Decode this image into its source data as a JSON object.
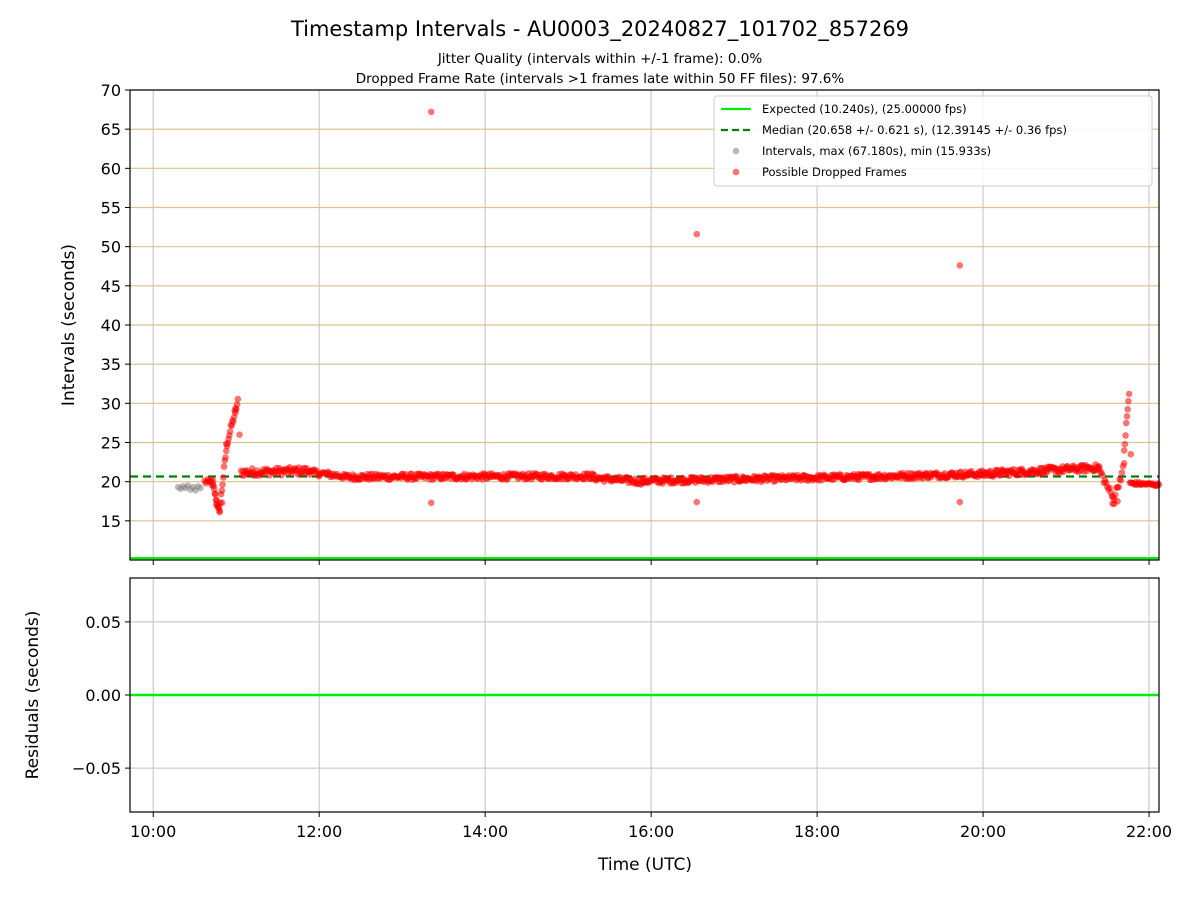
{
  "chart_data": {
    "type": "scatter",
    "title": "Timestamp Intervals - AU0003_20240827_101702_857269",
    "subtitle_lines": [
      "Jitter Quality (intervals within +/-1 frame): 0.0%",
      "Dropped Frame Rate (intervals >1 frames late within 50 FF files): 97.6%"
    ],
    "x_ticks": [
      "10:00",
      "12:00",
      "14:00",
      "16:00",
      "18:00",
      "20:00",
      "22:00"
    ],
    "xlabel": "Time (UTC)",
    "xlim_hours": [
      9.72,
      22.12
    ],
    "top_panel": {
      "ylabel": "Intervals (seconds)",
      "ylim": [
        10.0,
        70.0
      ],
      "y_ticks": [
        15,
        20,
        25,
        30,
        35,
        40,
        45,
        50,
        55,
        60,
        65,
        70
      ],
      "expected_interval": 10.24,
      "median_interval": 20.658,
      "legend": [
        {
          "label": "Expected (10.240s), (25.00000 fps)",
          "kind": "line",
          "color": "#00ee00"
        },
        {
          "label": "Median (20.658 +/- 0.621 s), (12.39145 +/- 0.36 fps)",
          "kind": "dashed",
          "color": "#008000"
        },
        {
          "label": "Intervals, max (67.180s), min (15.933s)",
          "kind": "dot",
          "color": "#808080"
        },
        {
          "label": "Possible Dropped Frames",
          "kind": "dot",
          "color": "#ff0000"
        }
      ],
      "series": [
        {
          "name": "Intervals, max (67.180s), min (15.933s)",
          "color": "#808080",
          "points": [
            [
              10.3,
              19.3
            ],
            [
              10.33,
              19.1
            ],
            [
              10.36,
              19.4
            ],
            [
              10.39,
              19.2
            ],
            [
              10.42,
              19.5
            ],
            [
              10.45,
              19.0
            ],
            [
              10.48,
              19.3
            ],
            [
              10.51,
              18.9
            ],
            [
              10.54,
              19.4
            ],
            [
              10.57,
              19.2
            ]
          ]
        },
        {
          "name": "Possible Dropped Frames",
          "color": "#ff0000",
          "segments": [
            {
              "from": [
                10.62,
                20.0
              ],
              "to": [
                10.72,
                19.8
              ],
              "count": 8,
              "jitter": 0.4
            },
            {
              "from": [
                10.72,
                19.5
              ],
              "to": [
                10.8,
                16.0
              ],
              "count": 12,
              "jitter": 0.4
            },
            {
              "from": [
                10.8,
                16.5
              ],
              "to": [
                10.88,
                24.0
              ],
              "count": 10,
              "jitter": 0.5
            },
            {
              "from": [
                10.88,
                24.5
              ],
              "to": [
                11.02,
                30.2
              ],
              "count": 16,
              "jitter": 0.5
            },
            {
              "from": [
                11.06,
                21.2
              ],
              "to": [
                11.9,
                21.4
              ],
              "count": 70,
              "jitter": 0.5
            },
            {
              "from": [
                11.9,
                21.2
              ],
              "to": [
                12.3,
                20.7
              ],
              "count": 30,
              "jitter": 0.4
            },
            {
              "from": [
                12.3,
                20.6
              ],
              "to": [
                15.3,
                20.7
              ],
              "count": 260,
              "jitter": 0.4
            },
            {
              "from": [
                15.3,
                20.5
              ],
              "to": [
                15.9,
                20.0
              ],
              "count": 50,
              "jitter": 0.4
            },
            {
              "from": [
                15.9,
                20.1
              ],
              "to": [
                18.5,
                20.6
              ],
              "count": 230,
              "jitter": 0.4
            },
            {
              "from": [
                18.5,
                20.6
              ],
              "to": [
                20.0,
                21.0
              ],
              "count": 140,
              "jitter": 0.4
            },
            {
              "from": [
                20.0,
                21.0
              ],
              "to": [
                21.4,
                21.8
              ],
              "count": 130,
              "jitter": 0.45
            },
            {
              "from": [
                21.4,
                21.5
              ],
              "to": [
                21.58,
                17.6
              ],
              "count": 14,
              "jitter": 0.5
            },
            {
              "from": [
                21.58,
                18.0
              ],
              "to": [
                21.7,
                22.0
              ],
              "count": 10,
              "jitter": 0.5
            },
            {
              "from": [
                21.7,
                24.0
              ],
              "to": [
                21.76,
                31.3
              ],
              "count": 8,
              "jitter": 0.5
            },
            {
              "from": [
                21.77,
                19.8
              ],
              "to": [
                22.12,
                19.6
              ],
              "count": 30,
              "jitter": 0.2
            }
          ],
          "points": [
            [
              10.7,
              20.3
            ],
            [
              10.76,
              17.1
            ],
            [
              10.83,
              17.3
            ],
            [
              10.99,
              28.8
            ],
            [
              11.04,
              26.0
            ],
            [
              13.35,
              67.2
            ],
            [
              13.35,
              17.3
            ],
            [
              16.55,
              51.6
            ],
            [
              16.55,
              17.4
            ],
            [
              19.72,
              47.6
            ],
            [
              19.72,
              17.4
            ],
            [
              21.78,
              23.5
            ],
            [
              21.56,
              17.2
            ],
            [
              21.62,
              17.5
            ]
          ]
        }
      ]
    },
    "bottom_panel": {
      "ylabel": "Residuals (seconds)",
      "ylim": [
        -0.08,
        0.08
      ],
      "y_ticks": [
        "0.05",
        "0.00",
        "−0.05"
      ],
      "y_tick_values": [
        0.05,
        0.0,
        -0.05
      ],
      "zero_line_color": "#00ee00"
    },
    "colors": {
      "expected": "#00ee00",
      "median": "#008000",
      "grid_y_top": "#d9c28c",
      "grid": "#cccccc",
      "dropped": "#ff0000",
      "intervals": "#808080"
    },
    "grid": true,
    "legend_position": "top-right"
  }
}
